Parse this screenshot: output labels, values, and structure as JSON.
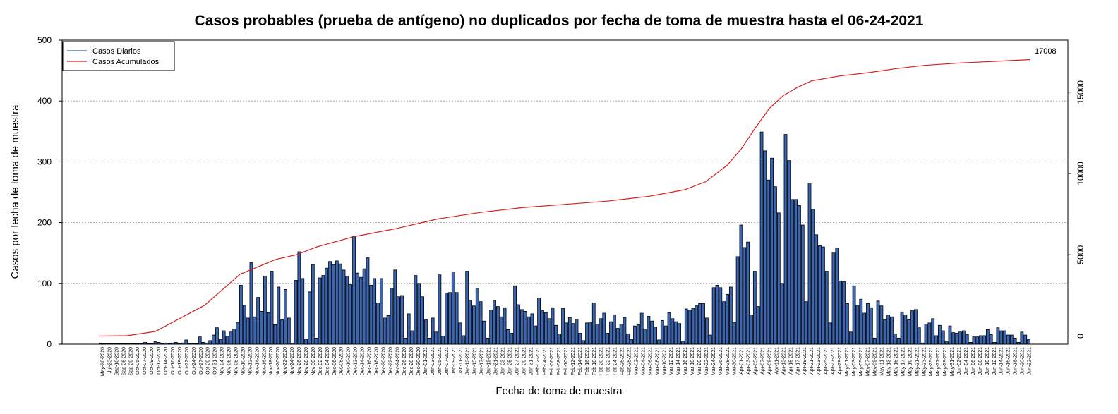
{
  "chart_data": {
    "type": "bar",
    "title": "Casos probables (prueba de antígeno) no duplicados por fecha de toma de muestra hasta el 06-24-2021",
    "xlabel": "Fecha de toma de muestra",
    "ylabel": "Casos por fecha de toma de muestra",
    "ylim": [
      0,
      500
    ],
    "y_ticks": [
      "0",
      "100",
      "200",
      "300",
      "400",
      "500"
    ],
    "y2lim": [
      -500,
      18200
    ],
    "y2_ticks": [
      "0",
      "5000",
      "10000",
      "15000"
    ],
    "grid": "horizontal dotted",
    "legend_position": "top-left",
    "end_label": "17008",
    "colors": {
      "bars": "#3a66b8",
      "line": "#d62020"
    },
    "x_tick_labels": [
      "May-28-2020",
      "Jul-23-2020",
      "Sep-18-2020",
      "Sep-26-2020",
      "Sep-29-2020",
      "Oct-05-2020",
      "Oct-07-2020",
      "Oct-09-2020",
      "Oct-12-2020",
      "Oct-14-2020",
      "Oct-16-2020",
      "Oct-19-2020",
      "Oct-22-2020",
      "Oct-24-2020",
      "Oct-27-2020",
      "Oct-29-2020",
      "Oct-31-2020",
      "Nov-04-2020",
      "Nov-06-2020",
      "Nov-08-2020",
      "Nov-10-2020",
      "Nov-12-2020",
      "Nov-14-2020",
      "Nov-16-2020",
      "Nov-18-2020",
      "Nov-20-2020",
      "Nov-22-2020",
      "Nov-24-2020",
      "Nov-26-2020",
      "Nov-28-2020",
      "Nov-30-2020",
      "Dec-02-2020",
      "Dec-04-2020",
      "Dec-06-2020",
      "Dec-08-2020",
      "Dec-10-2020",
      "Dec-12-2020",
      "Dec-14-2020",
      "Dec-16-2020",
      "Dec-18-2020",
      "Dec-20-2020",
      "Dec-22-2020",
      "Dec-24-2020",
      "Dec-26-2020",
      "Dec-28-2020",
      "Dec-30-2020",
      "Jan-01-2021",
      "Jan-03-2021",
      "Jan-05-2021",
      "Jan-07-2021",
      "Jan-09-2021",
      "Jan-11-2021",
      "Jan-13-2021",
      "Jan-15-2021",
      "Jan-17-2021",
      "Jan-19-2021",
      "Jan-21-2021",
      "Jan-23-2021",
      "Jan-25-2021",
      "Jan-27-2021",
      "Jan-29-2021",
      "Jan-31-2021",
      "Feb-02-2021",
      "Feb-04-2021",
      "Feb-06-2021",
      "Feb-08-2021",
      "Feb-10-2021",
      "Feb-12-2021",
      "Feb-14-2021",
      "Feb-16-2021",
      "Feb-18-2021",
      "Feb-20-2021",
      "Feb-22-2021",
      "Feb-24-2021",
      "Feb-26-2021",
      "Feb-28-2021",
      "Mar-02-2021",
      "Mar-04-2021",
      "Mar-06-2021",
      "Mar-08-2021",
      "Mar-10-2021",
      "Mar-12-2021",
      "Mar-14-2021",
      "Mar-16-2021",
      "Mar-18-2021",
      "Mar-20-2021",
      "Mar-22-2021",
      "Mar-24-2021",
      "Mar-26-2021",
      "Mar-28-2021",
      "Mar-30-2021",
      "Apr-01-2021",
      "Apr-03-2021",
      "Apr-05-2021",
      "Apr-07-2021",
      "Apr-09-2021",
      "Apr-11-2021",
      "Apr-13-2021",
      "Apr-15-2021",
      "Apr-17-2021",
      "Apr-19-2021",
      "Apr-21-2021",
      "Apr-23-2021",
      "Apr-25-2021",
      "Apr-27-2021",
      "Apr-29-2021",
      "May-01-2021",
      "May-03-2021",
      "May-05-2021",
      "May-07-2021",
      "May-09-2021",
      "May-11-2021",
      "May-13-2021",
      "May-15-2021",
      "May-17-2021",
      "May-19-2021",
      "May-21-2021",
      "May-23-2021",
      "May-25-2021",
      "May-27-2021",
      "May-29-2021",
      "May-31-2021",
      "Jun-02-2021",
      "Jun-04-2021",
      "Jun-06-2021",
      "Jun-08-2021",
      "Jun-10-2021",
      "Jun-12-2021",
      "Jun-14-2021",
      "Jun-16-2021",
      "Jun-18-2021",
      "Jun-20-2021",
      "Jun-22-2021"
    ],
    "series": [
      {
        "name": "Casos Diarios",
        "type": "bar",
        "values": [
          1,
          1,
          1,
          1,
          1,
          1,
          1,
          1,
          1,
          1,
          1,
          1,
          1,
          3,
          1,
          1,
          4,
          3,
          1,
          2,
          1,
          2,
          3,
          1,
          2,
          7,
          1,
          1,
          1,
          12,
          3,
          2,
          6,
          15,
          27,
          8,
          22,
          13,
          20,
          25,
          36,
          97,
          64,
          43,
          134,
          45,
          77,
          54,
          112,
          52,
          120,
          32,
          94,
          40,
          90,
          43,
          2,
          105,
          152,
          108,
          8,
          86,
          131,
          10,
          109,
          113,
          125,
          136,
          131,
          137,
          132,
          122,
          112,
          98,
          177,
          117,
          110,
          124,
          142,
          97,
          108,
          68,
          108,
          43,
          47,
          92,
          122,
          78,
          80,
          10,
          50,
          22,
          113,
          100,
          78,
          40,
          10,
          43,
          20,
          114,
          13,
          84,
          85,
          119,
          85,
          35,
          14,
          120,
          72,
          63,
          92,
          70,
          38,
          10,
          56,
          72,
          62,
          45,
          60,
          24,
          18,
          96,
          65,
          57,
          54,
          45,
          50,
          30,
          76,
          55,
          52,
          42,
          60,
          31,
          17,
          59,
          35,
          44,
          34,
          41,
          18,
          6,
          35,
          36,
          68,
          33,
          42,
          51,
          18,
          37,
          48,
          26,
          33,
          44,
          17,
          8,
          30,
          32,
          51,
          25,
          46,
          38,
          28,
          7,
          39,
          30,
          52,
          42,
          37,
          34,
          5,
          58,
          56,
          59,
          64,
          67,
          67,
          43,
          15,
          93,
          97,
          93,
          70,
          82,
          94,
          36,
          144,
          196,
          159,
          168,
          48,
          120,
          62,
          349,
          318,
          270,
          306,
          259,
          216,
          100,
          345,
          302,
          238,
          238,
          228,
          196,
          70,
          265,
          222,
          180,
          162,
          160,
          120,
          35,
          150,
          158,
          104,
          103,
          67,
          20,
          96,
          64,
          74,
          51,
          67,
          60,
          10,
          71,
          63,
          40,
          48,
          45,
          17,
          10,
          53,
          48,
          40,
          55,
          57,
          27,
          2,
          33,
          35,
          42,
          14,
          31,
          22,
          5,
          30,
          19,
          18,
          20,
          22,
          16,
          3,
          12,
          12,
          14,
          14,
          24,
          16,
          3,
          27,
          22,
          22,
          15,
          15,
          10,
          3,
          20,
          15,
          8
        ]
      },
      {
        "name": "Casos Acumulados",
        "type": "line",
        "axis": "right",
        "points": [
          [
            0,
            0
          ],
          [
            40,
            20
          ],
          [
            80,
            280
          ],
          [
            150,
            1900
          ],
          [
            200,
            3800
          ],
          [
            250,
            4700
          ],
          [
            280,
            5000
          ],
          [
            310,
            5500
          ],
          [
            360,
            6100
          ],
          [
            420,
            6600
          ],
          [
            480,
            7200
          ],
          [
            540,
            7600
          ],
          [
            600,
            7900
          ],
          [
            660,
            8100
          ],
          [
            720,
            8300
          ],
          [
            780,
            8600
          ],
          [
            830,
            9000
          ],
          [
            860,
            9500
          ],
          [
            890,
            10500
          ],
          [
            910,
            11500
          ],
          [
            930,
            12800
          ],
          [
            950,
            14000
          ],
          [
            970,
            14800
          ],
          [
            990,
            15300
          ],
          [
            1010,
            15700
          ],
          [
            1050,
            16000
          ],
          [
            1090,
            16200
          ],
          [
            1130,
            16450
          ],
          [
            1170,
            16650
          ],
          [
            1220,
            16800
          ],
          [
            1270,
            16900
          ],
          [
            1320,
            17008
          ]
        ]
      }
    ]
  }
}
